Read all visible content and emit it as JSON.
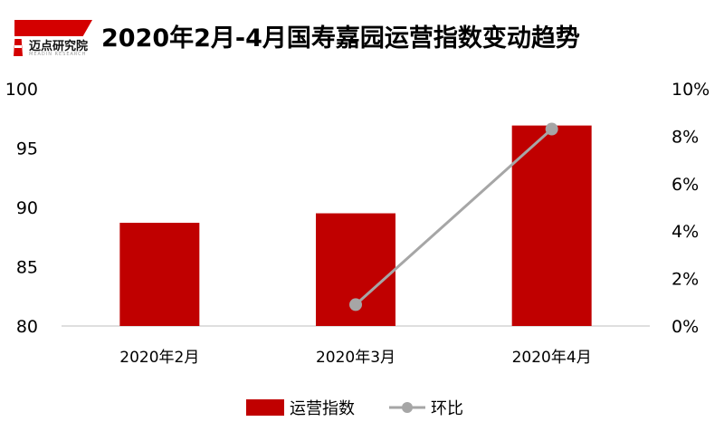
{
  "logo": {
    "text": "迈点研究院",
    "subtext": "MEADIN RESEARCH"
  },
  "colors": {
    "bar": "#c00000",
    "line": "#a6a6a6",
    "axis": "#bfbfbf",
    "logo_red": "#d40000"
  },
  "chart_data": {
    "type": "bar",
    "title": "2020年2月-4月国寿嘉园运营指数变动趋势",
    "categories": [
      "2020年2月",
      "2020年3月",
      "2020年4月"
    ],
    "series": [
      {
        "name": "运营指数",
        "type": "bar",
        "axis": "left",
        "values": [
          88.7,
          89.5,
          96.9
        ]
      },
      {
        "name": "环比",
        "type": "line",
        "axis": "right",
        "values": [
          null,
          0.009,
          0.083
        ]
      }
    ],
    "ylim_left": [
      80,
      100
    ],
    "ylim_right": [
      0,
      0.1
    ],
    "yticks_left": [
      "80",
      "85",
      "90",
      "95",
      "100"
    ],
    "yticks_right": [
      "0%",
      "2%",
      "4%",
      "6%",
      "8%",
      "10%"
    ],
    "legend_position": "bottom",
    "grid": false
  }
}
